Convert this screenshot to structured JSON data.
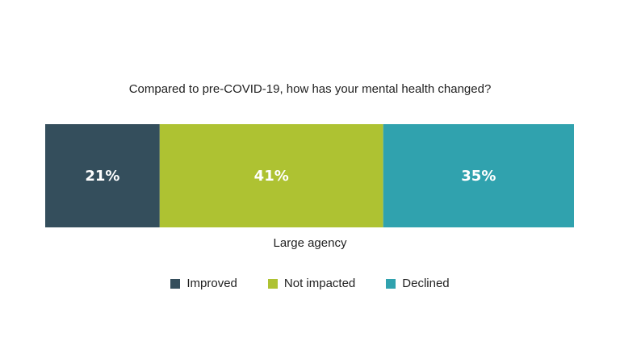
{
  "chart_data": {
    "type": "bar",
    "stacked": true,
    "orientation": "horizontal",
    "title": "Compared to pre-COVID-19, how has your mental health changed?",
    "categories": [
      "Large agency"
    ],
    "series": [
      {
        "name": "Improved",
        "values": [
          21
        ],
        "label": "21%",
        "color": "#344e5c"
      },
      {
        "name": "Not impacted",
        "values": [
          41
        ],
        "label": "41%",
        "color": "#aec232"
      },
      {
        "name": "Declined",
        "values": [
          35
        ],
        "label": "35%",
        "color": "#30a2ae"
      }
    ],
    "legend_position": "bottom",
    "grid": false
  }
}
